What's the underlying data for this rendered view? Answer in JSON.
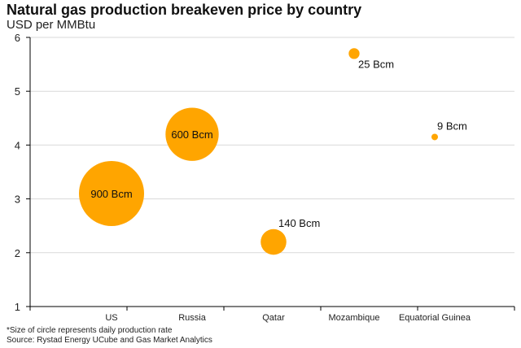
{
  "title": "Natural gas production breakeven price by country",
  "subtitle": "USD per MMBtu",
  "footnotes": {
    "size_note": "*Size of circle represents daily production rate",
    "source": "Source: Rystad Energy UCube and Gas Market Analytics"
  },
  "colors": {
    "bubble": "#FFA500",
    "gridline": "#d9d9d9",
    "axis": "#000000"
  },
  "chart_data": {
    "type": "scatter",
    "title": "Natural gas production breakeven price by country",
    "ylabel": "USD per MMBtu",
    "xlabel": "",
    "ylim": [
      1,
      6
    ],
    "yticks": [
      "1",
      "2",
      "3",
      "4",
      "5",
      "6"
    ],
    "grid": true,
    "categories": [
      "US",
      "Russia",
      "Qatar",
      "Mozambique",
      "Equatorial Guinea"
    ],
    "points": [
      {
        "category": "US",
        "y": 3.1,
        "size": 900,
        "label": "900 Bcm"
      },
      {
        "category": "Russia",
        "y": 4.2,
        "size": 600,
        "label": "600 Bcm"
      },
      {
        "category": "Qatar",
        "y": 2.2,
        "size": 140,
        "label": "140 Bcm"
      },
      {
        "category": "Mozambique",
        "y": 5.7,
        "size": 25,
        "label": "25 Bcm"
      },
      {
        "category": "Equatorial Guinea",
        "y": 4.15,
        "size": 9,
        "label": "9 Bcm"
      }
    ]
  }
}
